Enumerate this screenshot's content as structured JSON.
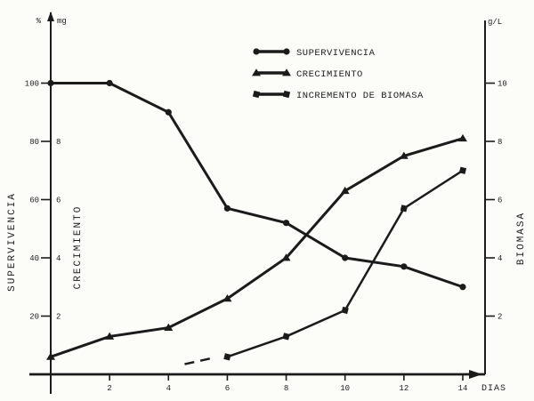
{
  "figure": {
    "ink_color": "#1b1b1b",
    "paper_color": "#fcfcf9"
  },
  "axes": {
    "left_outer": {
      "label": "SUPERVIVENCIA",
      "unit": "%",
      "ticks": [
        100,
        80,
        60,
        40,
        20
      ]
    },
    "left_inner": {
      "label": "CRECIMIENTO",
      "unit": "mg",
      "ticks": [
        8,
        6,
        4,
        2
      ]
    },
    "right": {
      "label": "BIOMASA",
      "unit": "g/L",
      "ticks": [
        10,
        8,
        6,
        4,
        2
      ]
    },
    "x": {
      "label": "DIAS",
      "ticks": [
        2,
        4,
        6,
        8,
        10,
        12,
        14
      ]
    }
  },
  "legend": {
    "position": "top-center",
    "entries": [
      {
        "label": "SUPERVIVENCIA",
        "marker": "circle"
      },
      {
        "label": "CRECIMIENTO",
        "marker": "triangle"
      },
      {
        "label": "INCREMENTO DE BIOMASA",
        "marker": "square"
      }
    ]
  },
  "chart_data": {
    "type": "line",
    "title": "",
    "xlabel": "DIAS",
    "x_range": [
      0,
      14
    ],
    "grid": false,
    "left_percent_axis": {
      "label": "SUPERVIVENCIA (%)",
      "ticks": [
        100,
        80,
        60,
        40,
        20
      ],
      "range": [
        0,
        123
      ]
    },
    "left_unit_axis": {
      "label": "CRECIMIENTO (mg)",
      "ticks": [
        2,
        4,
        6,
        8
      ],
      "range": [
        0,
        12.2
      ]
    },
    "right_unit_axis": {
      "label": "BIOMASA (g/L)",
      "ticks": [
        2,
        4,
        6,
        8,
        10
      ],
      "range": [
        0,
        12.2
      ]
    },
    "series": [
      {
        "name": "SUPERVIVENCIA",
        "axis": "percent",
        "marker": "circle",
        "width": 3,
        "x": [
          0,
          2,
          4,
          6,
          8,
          10,
          12,
          14
        ],
        "values": [
          100,
          100,
          90,
          57,
          52,
          40,
          37,
          30
        ]
      },
      {
        "name": "CRECIMIENTO",
        "axis": "unit",
        "marker": "triangle",
        "width": 3,
        "x": [
          0,
          2,
          4,
          6,
          8,
          10,
          12,
          14
        ],
        "values": [
          0.6,
          1.3,
          1.6,
          2.6,
          4.0,
          6.3,
          7.5,
          8.1
        ]
      },
      {
        "name": "INCREMENTO DE BIOMASA",
        "axis": "unit",
        "marker": "square",
        "width": 2.5,
        "x": [
          6,
          8,
          10,
          12,
          14
        ],
        "values": [
          0.6,
          1.3,
          2.2,
          5.7,
          7.0
        ],
        "lead_in_dash": {
          "x": [
            4.55,
            5.45
          ],
          "values": [
            0.35,
            0.55
          ]
        }
      }
    ]
  }
}
